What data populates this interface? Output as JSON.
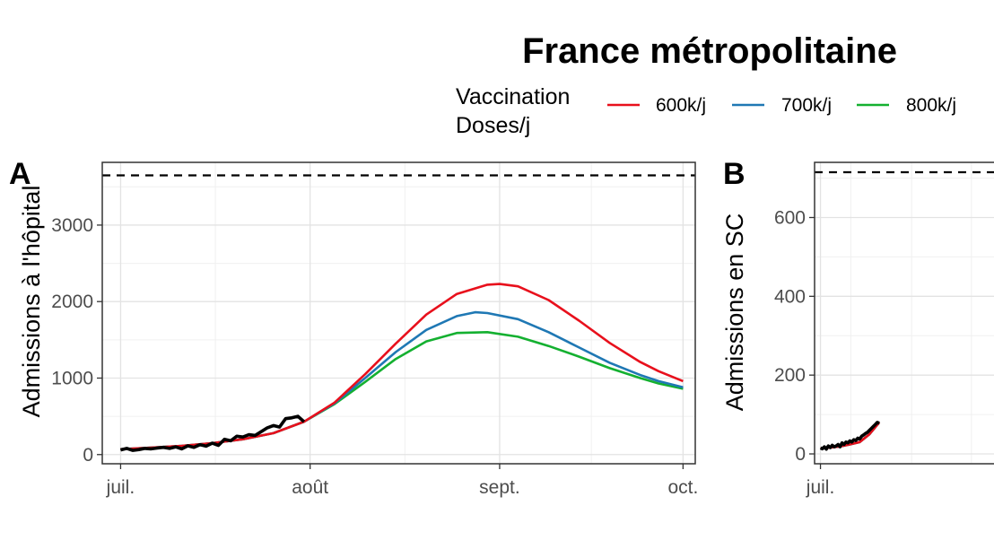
{
  "figure": {
    "title": "France métropolitaine",
    "legend": {
      "title_line1": "Vaccination",
      "title_line2": "Doses/j",
      "items": [
        {
          "label": "600k/j",
          "color": "#e8101c"
        },
        {
          "label": "700k/j",
          "color": "#1f78b4"
        },
        {
          "label": "800k/j",
          "color": "#14b030"
        }
      ]
    }
  },
  "chart_data": [
    {
      "type": "line",
      "panel_tag": "A",
      "ylabel": "Admissions à l'hôpital",
      "x_ticks": [
        "juil.",
        "août",
        "sept.",
        "oct."
      ],
      "xlim_days": [
        -3,
        94
      ],
      "ylim": [
        -120,
        3820
      ],
      "y_ticks": [
        "0",
        "1000",
        "2000",
        "3000"
      ],
      "y_tick_values": [
        0,
        1000,
        2000,
        3000
      ],
      "capacity_line": 3650,
      "observed": {
        "x": [
          0,
          1,
          2,
          3,
          4,
          5,
          6,
          7,
          8,
          9,
          10,
          11,
          12,
          13,
          14,
          15,
          16,
          17,
          18,
          19,
          20,
          21,
          22,
          23,
          24,
          25,
          26,
          27,
          28,
          29,
          30
        ],
        "y": [
          60,
          80,
          55,
          65,
          80,
          75,
          85,
          95,
          80,
          100,
          75,
          115,
          95,
          130,
          110,
          150,
          120,
          200,
          180,
          240,
          230,
          260,
          250,
          300,
          350,
          380,
          360,
          470,
          480,
          500,
          430
        ]
      },
      "series": [
        {
          "name": "600k/j",
          "color": "#e8101c",
          "x": [
            0,
            5,
            10,
            15,
            20,
            25,
            30,
            35,
            40,
            45,
            50,
            55,
            60,
            62,
            65,
            70,
            75,
            80,
            85,
            88,
            92
          ],
          "y": [
            70,
            90,
            115,
            150,
            200,
            280,
            430,
            680,
            1050,
            1450,
            1830,
            2100,
            2220,
            2230,
            2200,
            2020,
            1750,
            1460,
            1210,
            1090,
            960
          ]
        },
        {
          "name": "700k/j",
          "color": "#1f78b4",
          "x": [
            0,
            5,
            10,
            15,
            20,
            25,
            30,
            35,
            40,
            45,
            50,
            55,
            58,
            60,
            65,
            70,
            75,
            80,
            85,
            88,
            92
          ],
          "y": [
            70,
            90,
            115,
            150,
            200,
            280,
            430,
            670,
            1000,
            1340,
            1630,
            1810,
            1860,
            1850,
            1770,
            1600,
            1400,
            1200,
            1040,
            960,
            880
          ]
        },
        {
          "name": "800k/j",
          "color": "#14b030",
          "x": [
            0,
            5,
            10,
            15,
            20,
            25,
            30,
            35,
            40,
            45,
            50,
            55,
            60,
            65,
            70,
            75,
            80,
            85,
            88,
            92
          ],
          "y": [
            70,
            90,
            115,
            150,
            200,
            280,
            430,
            660,
            950,
            1250,
            1480,
            1590,
            1600,
            1540,
            1420,
            1280,
            1130,
            1000,
            930,
            860
          ]
        }
      ]
    },
    {
      "type": "line",
      "panel_tag": "B",
      "ylabel": "Admissions en SC",
      "x_ticks": [
        "juil."
      ],
      "xlim_days": [
        -3,
        94
      ],
      "ylim": [
        -25,
        740
      ],
      "y_ticks": [
        "0",
        "200",
        "400",
        "600"
      ],
      "y_tick_values": [
        0,
        200,
        400,
        600
      ],
      "capacity_line": 715,
      "observed": {
        "x": [
          0,
          1,
          2,
          3,
          4,
          5,
          6,
          7,
          8,
          9,
          10,
          11,
          12,
          13,
          14,
          15,
          16,
          17,
          18,
          19,
          20,
          21,
          22,
          23,
          24,
          25,
          26,
          27,
          28,
          29,
          30
        ],
        "y": [
          15,
          13,
          18,
          12,
          20,
          16,
          22,
          18,
          20,
          24,
          18,
          28,
          24,
          30,
          28,
          33,
          30,
          36,
          34,
          40,
          38,
          45,
          48,
          52,
          55,
          60,
          65,
          70,
          75,
          80,
          78
        ]
      },
      "series": [
        {
          "name": "600k/j",
          "color": "#e8101c",
          "x": [
            0,
            5,
            10,
            15,
            20,
            25,
            30
          ],
          "y": [
            14,
            16,
            19,
            24,
            30,
            50,
            80
          ]
        },
        {
          "name": "700k/j",
          "color": "#1f78b4",
          "x": [
            0,
            5,
            10,
            15,
            20,
            25,
            30
          ],
          "y": [
            14,
            16,
            19,
            24,
            30,
            50,
            80
          ]
        },
        {
          "name": "800k/j",
          "color": "#14b030",
          "x": [
            0,
            5,
            10,
            15,
            20,
            25,
            30
          ],
          "y": [
            14,
            16,
            19,
            24,
            30,
            50,
            80
          ]
        }
      ]
    }
  ]
}
